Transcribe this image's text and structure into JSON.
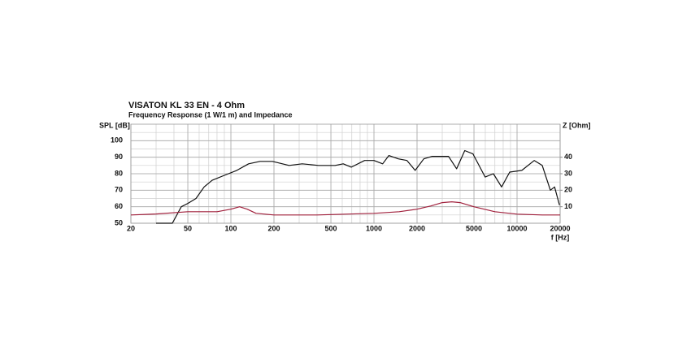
{
  "chart_data": {
    "type": "line",
    "title": "VISATON KL 33 EN - 4 Ohm",
    "subtitle": "Frequency Response (1 W/1 m) and Impedance",
    "y_label": "SPL [dB]",
    "y2_label": "Z [Ohm]",
    "x_label": "f [Hz]",
    "log_x": true,
    "grid": true,
    "minor_grid": true,
    "xlim": [
      20,
      20000
    ],
    "xticks": [
      20,
      50,
      100,
      200,
      500,
      1000,
      2000,
      5000,
      10000,
      20000
    ],
    "ylim": [
      50,
      110
    ],
    "yticks": [
      50,
      60,
      70,
      80,
      90,
      100
    ],
    "y2lim": [
      0,
      60
    ],
    "y2ticks": [
      10,
      20,
      30,
      40
    ],
    "series": [
      {
        "name": "SPL",
        "color": "#111111",
        "x": [
          30,
          39,
          45,
          50,
          57,
          65,
          74,
          90,
          110,
          133,
          160,
          195,
          255,
          315,
          410,
          535,
          610,
          695,
          860,
          1000,
          1150,
          1270,
          1480,
          1700,
          1940,
          2230,
          2550,
          3320,
          3780,
          4310,
          4920,
          5990,
          6830,
          7800,
          8890,
          10800,
          13200,
          15000,
          17100,
          18300,
          19800
        ],
        "values": [
          50,
          50,
          60,
          62,
          65,
          72,
          76,
          79,
          82,
          86,
          87.5,
          87.5,
          85,
          86,
          85,
          85,
          86,
          84,
          88,
          88,
          86,
          91,
          89,
          88,
          82,
          89,
          90.5,
          90.5,
          83,
          94,
          92,
          78,
          80,
          72,
          81,
          82,
          88,
          85,
          70,
          72,
          61
        ]
      },
      {
        "name": "Impedance",
        "color": "#a0203c",
        "axis": "y2",
        "x": [
          20,
          30,
          50,
          80,
          100,
          115,
          130,
          150,
          200,
          400,
          1000,
          1500,
          2000,
          2500,
          3000,
          3500,
          4000,
          5000,
          7000,
          10000,
          15000,
          20000
        ],
        "values": [
          5,
          5.6,
          7,
          7,
          8.5,
          10,
          8.5,
          6,
          5,
          5,
          6,
          7,
          8.5,
          10.5,
          12.5,
          13,
          12.5,
          10,
          7,
          5.5,
          5,
          5
        ]
      }
    ]
  }
}
